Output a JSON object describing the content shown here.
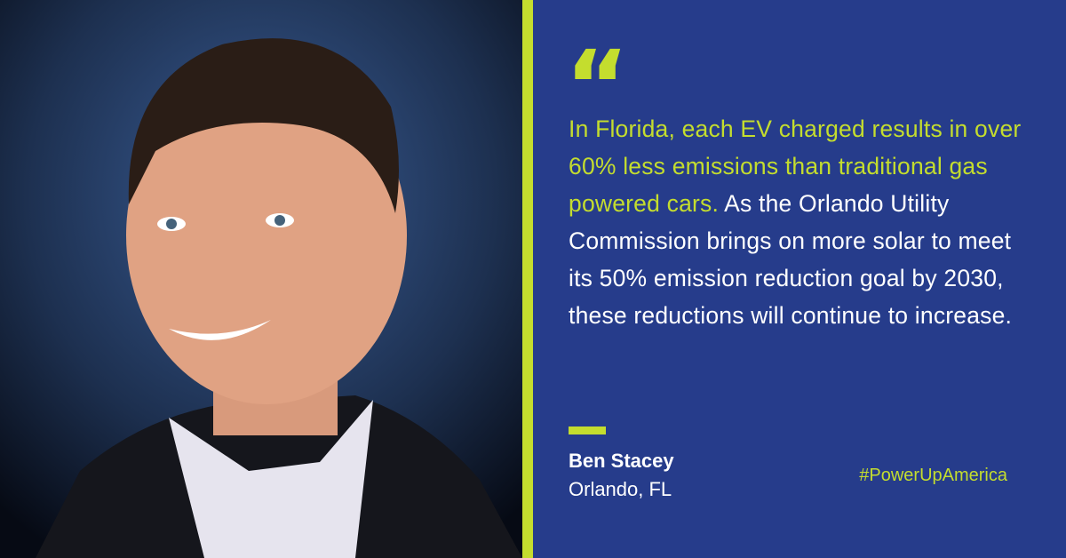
{
  "quote_mark": "“",
  "quote": {
    "highlight": "In Florida, each EV charged results in over 60% less emissions than traditional gas powered cars.",
    "text": "As the Orlando Utility Commission brings on more solar to meet its 50% emission reduction goal by 2030, these reductions will continue to increase."
  },
  "attribution": {
    "name": "Ben Stacey",
    "location": "Orlando, FL"
  },
  "hashtag": "#PowerUpAmerica"
}
